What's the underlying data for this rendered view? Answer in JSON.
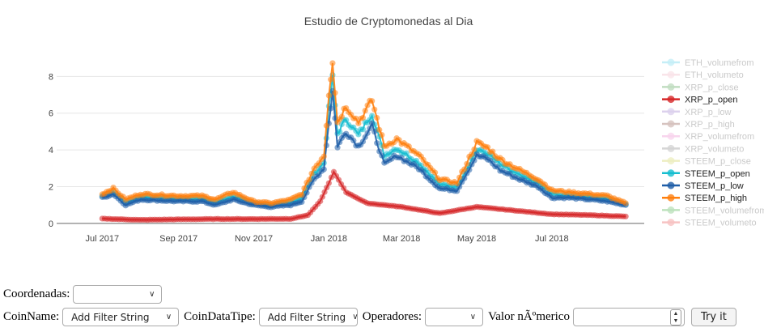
{
  "chart_data": {
    "type": "line",
    "title": "Estudio de Cryptomonedas al Dia",
    "xlabel": "",
    "ylabel": "",
    "x_tick_labels": [
      "Jul 2017",
      "Sep 2017",
      "Nov 2017",
      "Jan 2018",
      "Mar 2018",
      "May 2018",
      "Jul 2018"
    ],
    "x_tick_dates": [
      "2017-07-01",
      "2017-09-01",
      "2017-11-01",
      "2018-01-01",
      "2018-03-01",
      "2018-05-01",
      "2018-07-01"
    ],
    "x_range": [
      "2017-05-25",
      "2018-09-14"
    ],
    "ylim": [
      -0.4,
      9.6
    ],
    "y_ticks": [
      0,
      2,
      4,
      6,
      8
    ],
    "grid": true,
    "legend_position": "right",
    "legend": [
      {
        "name": "ETH_volumefrom",
        "color": "#7fdbee",
        "visible": false
      },
      {
        "name": "ETH_volumeto",
        "color": "#f2c4cf",
        "visible": false
      },
      {
        "name": "XRP_p_close",
        "color": "#77b477",
        "visible": false
      },
      {
        "name": "XRP_p_open",
        "color": "#d62728",
        "visible": true
      },
      {
        "name": "XRP_p_low",
        "color": "#b39ad8",
        "visible": false
      },
      {
        "name": "XRP_p_high",
        "color": "#a57b72",
        "visible": false
      },
      {
        "name": "XRP_volumefrom",
        "color": "#f0a4d8",
        "visible": false
      },
      {
        "name": "XRP_volumeto",
        "color": "#a3a3a3",
        "visible": false
      },
      {
        "name": "STEEM_p_close",
        "color": "#d8da7a",
        "visible": false
      },
      {
        "name": "STEEM_p_open",
        "color": "#17becf",
        "visible": true
      },
      {
        "name": "STEEM_p_low",
        "color": "#1f5ea8",
        "visible": true
      },
      {
        "name": "STEEM_p_high",
        "color": "#ff7f0e",
        "visible": true
      },
      {
        "name": "STEEM_volumefrom",
        "color": "#6fbf6f",
        "visible": false
      },
      {
        "name": "STEEM_volumeto",
        "color": "#ee7b7b",
        "visible": false
      }
    ],
    "series": [
      {
        "name": "XRP_p_open",
        "color": "#d62728",
        "x": [
          "2017-07-01",
          "2017-08-01",
          "2017-09-01",
          "2017-10-01",
          "2017-11-01",
          "2017-12-01",
          "2017-12-15",
          "2017-12-25",
          "2018-01-01",
          "2018-01-05",
          "2018-01-15",
          "2018-02-01",
          "2018-03-01",
          "2018-04-01",
          "2018-05-01",
          "2018-06-01",
          "2018-07-01",
          "2018-08-01",
          "2018-08-30"
        ],
        "values": [
          0.26,
          0.19,
          0.22,
          0.24,
          0.24,
          0.25,
          0.45,
          1.2,
          2.2,
          2.8,
          1.7,
          1.1,
          0.9,
          0.55,
          0.9,
          0.7,
          0.5,
          0.45,
          0.38
        ]
      },
      {
        "name": "STEEM_p_high",
        "color": "#ff7f0e",
        "x": [
          "2017-07-01",
          "2017-07-10",
          "2017-07-20",
          "2017-08-01",
          "2017-09-01",
          "2017-09-20",
          "2017-10-01",
          "2017-10-15",
          "2017-11-01",
          "2017-11-15",
          "2017-12-01",
          "2017-12-10",
          "2017-12-20",
          "2017-12-28",
          "2018-01-01",
          "2018-01-04",
          "2018-01-08",
          "2018-01-15",
          "2018-01-25",
          "2018-02-05",
          "2018-02-15",
          "2018-02-25",
          "2018-03-15",
          "2018-04-01",
          "2018-04-15",
          "2018-05-01",
          "2018-05-10",
          "2018-05-20",
          "2018-06-05",
          "2018-06-20",
          "2018-07-01",
          "2018-07-15",
          "2018-08-01",
          "2018-08-15",
          "2018-08-30"
        ],
        "values": [
          1.6,
          1.9,
          1.3,
          1.6,
          1.5,
          1.5,
          1.3,
          1.7,
          1.2,
          1.1,
          1.3,
          1.6,
          3.0,
          3.7,
          7.1,
          8.9,
          5.5,
          6.4,
          5.5,
          6.7,
          4.2,
          4.6,
          3.7,
          2.4,
          2.2,
          4.4,
          4.1,
          3.5,
          2.9,
          2.4,
          1.8,
          1.7,
          1.6,
          1.5,
          1.1
        ]
      },
      {
        "name": "STEEM_p_low",
        "color": "#1f5ea8",
        "x": [
          "2017-07-01",
          "2017-07-10",
          "2017-07-20",
          "2017-08-01",
          "2017-09-01",
          "2017-09-20",
          "2017-10-01",
          "2017-10-15",
          "2017-11-01",
          "2017-11-15",
          "2017-12-01",
          "2017-12-10",
          "2017-12-20",
          "2017-12-28",
          "2018-01-01",
          "2018-01-04",
          "2018-01-08",
          "2018-01-15",
          "2018-01-25",
          "2018-02-05",
          "2018-02-15",
          "2018-02-25",
          "2018-03-15",
          "2018-04-01",
          "2018-04-15",
          "2018-05-01",
          "2018-05-10",
          "2018-05-20",
          "2018-06-05",
          "2018-06-20",
          "2018-07-01",
          "2018-07-15",
          "2018-08-01",
          "2018-08-15",
          "2018-08-30"
        ],
        "values": [
          1.4,
          1.6,
          1.0,
          1.3,
          1.2,
          1.2,
          1.0,
          1.3,
          1.0,
          0.9,
          1.0,
          1.2,
          2.4,
          3.0,
          5.5,
          7.2,
          4.2,
          5.0,
          4.2,
          5.3,
          3.2,
          3.7,
          3.0,
          1.9,
          1.8,
          3.7,
          3.5,
          2.9,
          2.4,
          2.0,
          1.4,
          1.4,
          1.3,
          1.2,
          1.0
        ]
      },
      {
        "name": "STEEM_p_open",
        "color": "#17becf",
        "x": [
          "2017-07-01",
          "2017-07-10",
          "2017-07-20",
          "2017-08-01",
          "2017-09-01",
          "2017-09-20",
          "2017-10-01",
          "2017-10-15",
          "2017-11-01",
          "2017-11-15",
          "2017-12-01",
          "2017-12-10",
          "2017-12-20",
          "2017-12-28",
          "2018-01-01",
          "2018-01-04",
          "2018-01-08",
          "2018-01-15",
          "2018-01-25",
          "2018-02-05",
          "2018-02-15",
          "2018-02-25",
          "2018-03-15",
          "2018-04-01",
          "2018-04-15",
          "2018-05-01",
          "2018-05-10",
          "2018-05-20",
          "2018-06-05",
          "2018-06-20",
          "2018-07-01",
          "2018-07-15",
          "2018-08-01",
          "2018-08-15",
          "2018-08-30"
        ],
        "values": [
          1.5,
          1.75,
          1.15,
          1.45,
          1.35,
          1.35,
          1.15,
          1.5,
          1.1,
          1.0,
          1.15,
          1.4,
          2.7,
          3.3,
          6.2,
          7.9,
          4.9,
          5.7,
          4.8,
          6.0,
          3.7,
          4.1,
          3.3,
          2.1,
          2.0,
          4.0,
          3.8,
          3.2,
          2.6,
          2.2,
          1.6,
          1.5,
          1.45,
          1.35,
          1.05
        ]
      }
    ]
  },
  "controls": {
    "coordenadas_label": "Coordenadas:",
    "coordenadas_value": "",
    "coinname_label": "CoinName:",
    "coinname_value": "Add Filter String",
    "coindatatipe_label": "CoinDataTipe:",
    "coindatatipe_value": "Add Filter String",
    "operadores_label": "Operadores:",
    "operadores_value": "",
    "valor_label": "Valor nÃºmerico",
    "valor_value": "",
    "try_label": "Try it"
  }
}
